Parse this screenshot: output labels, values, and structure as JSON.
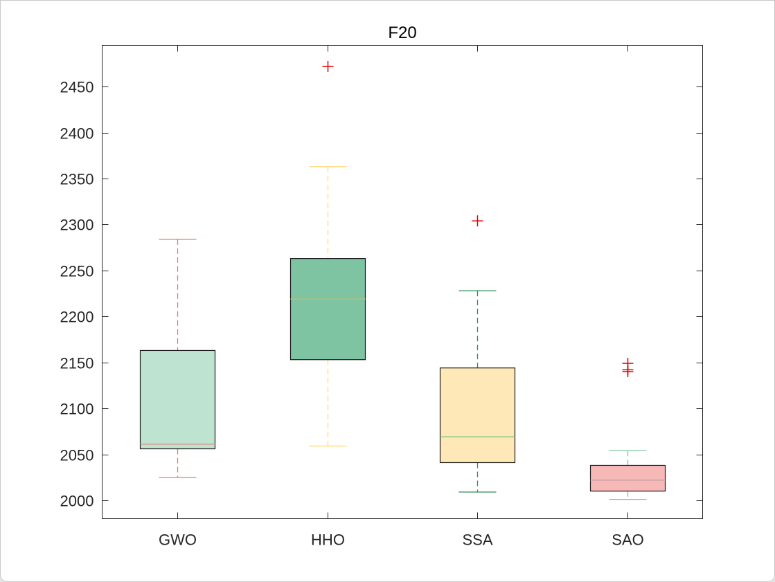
{
  "chart_data": {
    "type": "box",
    "title": "F20",
    "xlabel": "",
    "ylabel": "",
    "ylim": [
      1980,
      2495
    ],
    "y_ticks": [
      2000,
      2050,
      2100,
      2150,
      2200,
      2250,
      2300,
      2350,
      2400,
      2450
    ],
    "categories": [
      "GWO",
      "HHO",
      "SSA",
      "SAO"
    ],
    "series": [
      {
        "name": "GWO",
        "whisker_low": 2025,
        "q1": 2056,
        "median": 2061,
        "q3": 2163,
        "whisker_high": 2284,
        "outliers": [],
        "box_color": "#bfe3d1",
        "whisker_color": "#f07070",
        "median_color": "#d9998a"
      },
      {
        "name": "HHO",
        "whisker_low": 2059,
        "q1": 2153,
        "median": 2219,
        "q3": 2263,
        "whisker_high": 2363,
        "outliers": [
          2472
        ],
        "box_color": "#7fc4a2",
        "whisker_color": "#ffd97a",
        "median_color": "#b5bf7a"
      },
      {
        "name": "SSA",
        "whisker_low": 2009,
        "q1": 2041,
        "median": 2069,
        "q3": 2144,
        "whisker_high": 2228,
        "outliers": [
          2304
        ],
        "box_color": "#ffe8b8",
        "whisker_color": "#2e8b57",
        "median_color": "#88c48a"
      },
      {
        "name": "SAO",
        "whisker_low": 2001,
        "q1": 2010,
        "median": 2022,
        "q3": 2038,
        "whisker_high": 2054,
        "outliers": [
          2140,
          2142,
          2149
        ],
        "box_color": "#f7b8b8",
        "whisker_color": "#7fc4a2",
        "median_color": "#c4a0a0"
      }
    ],
    "outlier_color": "#e00000",
    "grid": false
  }
}
